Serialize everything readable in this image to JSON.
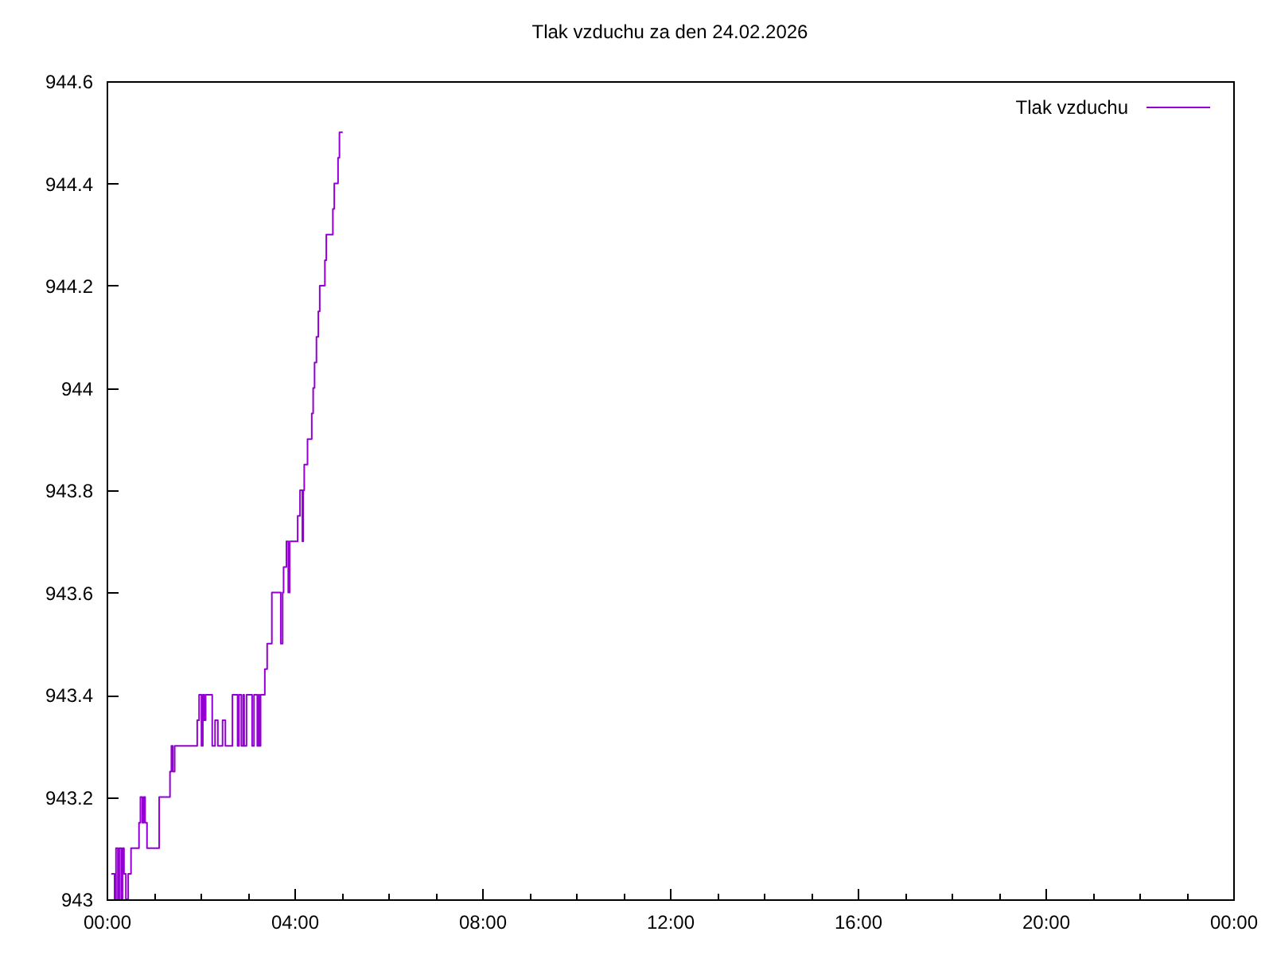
{
  "chart_data": {
    "type": "step",
    "title": "Tlak vzduchu za den 24.02.2026",
    "x": [
      0.1,
      0.17,
      0.2,
      0.24,
      0.27,
      0.31,
      0.34,
      0.37,
      0.41,
      0.46,
      0.52,
      0.69,
      0.72,
      0.76,
      0.79,
      0.82,
      0.86,
      1.12,
      1.35,
      1.38,
      1.41,
      1.45,
      1.93,
      1.97,
      2.02,
      2.05,
      2.08,
      2.11,
      2.25,
      2.31,
      2.37,
      2.47,
      2.53,
      2.68,
      2.79,
      2.82,
      2.87,
      2.91,
      2.93,
      2.98,
      3.1,
      3.14,
      3.21,
      3.24,
      3.25,
      3.28,
      3.37,
      3.42,
      3.52,
      3.71,
      3.75,
      3.77,
      3.83,
      3.87,
      3.9,
      4.07,
      4.12,
      4.17,
      4.19,
      4.21,
      4.28,
      4.37,
      4.4,
      4.43,
      4.47,
      4.51,
      4.54,
      4.65,
      4.68,
      4.82,
      4.85,
      4.93,
      4.96,
      5.03
    ],
    "xlim": [
      0,
      24
    ],
    "xticks": [
      {
        "value": 0,
        "label": "00:00"
      },
      {
        "value": 1,
        "label": null
      },
      {
        "value": 2,
        "label": null
      },
      {
        "value": 3,
        "label": null
      },
      {
        "value": 4,
        "label": "04:00"
      },
      {
        "value": 5,
        "label": null
      },
      {
        "value": 6,
        "label": null
      },
      {
        "value": 7,
        "label": null
      },
      {
        "value": 8,
        "label": "08:00"
      },
      {
        "value": 9,
        "label": null
      },
      {
        "value": 10,
        "label": null
      },
      {
        "value": 11,
        "label": null
      },
      {
        "value": 12,
        "label": "12:00"
      },
      {
        "value": 13,
        "label": null
      },
      {
        "value": 14,
        "label": null
      },
      {
        "value": 15,
        "label": null
      },
      {
        "value": 16,
        "label": "16:00"
      },
      {
        "value": 17,
        "label": null
      },
      {
        "value": 18,
        "label": null
      },
      {
        "value": 19,
        "label": null
      },
      {
        "value": 20,
        "label": "20:00"
      },
      {
        "value": 21,
        "label": null
      },
      {
        "value": 22,
        "label": null
      },
      {
        "value": 23,
        "label": null
      },
      {
        "value": 24,
        "label": "00:00"
      }
    ],
    "ylim": [
      943,
      944.6
    ],
    "yticks": [
      943,
      943.2,
      943.4,
      943.6,
      943.8,
      944,
      944.2,
      944.4,
      944.6
    ],
    "legend": "top right",
    "series": [
      {
        "name": "Tlak vzduchu",
        "color": "#9400d3",
        "values": [
          943.05,
          943.0,
          943.1,
          943.0,
          943.1,
          943.0,
          943.1,
          943.05,
          943.0,
          943.05,
          943.1,
          943.15,
          943.2,
          943.15,
          943.2,
          943.15,
          943.1,
          943.2,
          943.25,
          943.3,
          943.25,
          943.3,
          943.35,
          943.4,
          943.3,
          943.4,
          943.35,
          943.4,
          943.3,
          943.35,
          943.3,
          943.35,
          943.3,
          943.4,
          943.3,
          943.4,
          943.3,
          943.4,
          943.3,
          943.4,
          943.3,
          943.4,
          943.3,
          943.4,
          943.3,
          943.4,
          943.45,
          943.5,
          943.6,
          943.5,
          943.6,
          943.65,
          943.7,
          943.6,
          943.7,
          943.75,
          943.8,
          943.7,
          943.8,
          943.85,
          943.9,
          943.95,
          944.0,
          944.05,
          944.1,
          944.15,
          944.2,
          944.25,
          944.3,
          944.35,
          944.4,
          944.45,
          944.5,
          944.5
        ]
      }
    ]
  }
}
